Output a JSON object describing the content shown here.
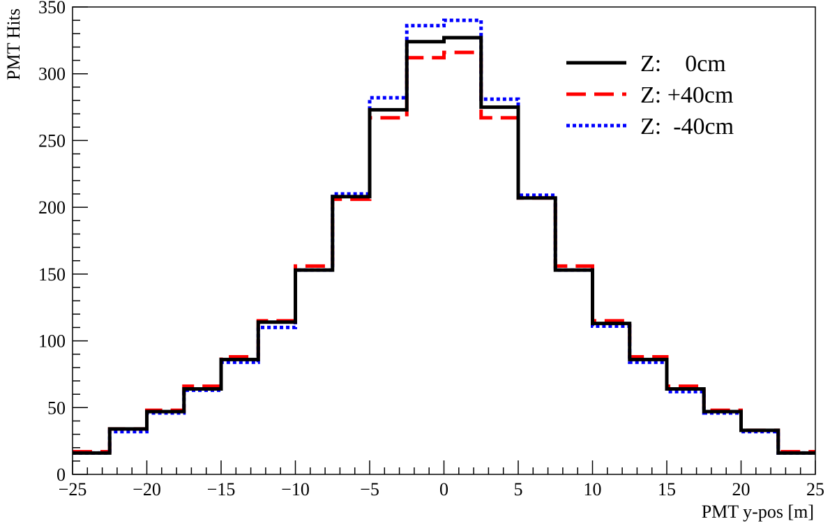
{
  "chart_data": {
    "type": "line",
    "step": "histogram",
    "title": "",
    "xlabel": "PMT y-pos [m]",
    "ylabel": "PMT Hits",
    "xlim": [
      -25,
      25
    ],
    "ylim": [
      0,
      350
    ],
    "xticks": [
      -25,
      -20,
      -15,
      -10,
      -5,
      0,
      5,
      10,
      15,
      20,
      25
    ],
    "xtick_labels": [
      "−25",
      "−20",
      "−15",
      "−10",
      "−5",
      "0",
      "5",
      "10",
      "15",
      "20",
      "25"
    ],
    "yticks": [
      0,
      50,
      100,
      150,
      200,
      250,
      300,
      350
    ],
    "ytick_labels": [
      "0",
      "50",
      "100",
      "150",
      "200",
      "250",
      "300",
      "350"
    ],
    "bin_edges": [
      -25,
      -22.5,
      -20,
      -17.5,
      -15,
      -12.5,
      -10,
      -7.5,
      -5,
      -2.5,
      0,
      2.5,
      5,
      7.5,
      10,
      12.5,
      15,
      17.5,
      20,
      22.5,
      25
    ],
    "legend_position": "top-right",
    "grid": false,
    "series": [
      {
        "name": "Z:    0cm",
        "color": "#000000",
        "style": "solid",
        "values": [
          16,
          34,
          47,
          64,
          86,
          114,
          153,
          208,
          273,
          324,
          327,
          275,
          207,
          153,
          113,
          86,
          64,
          47,
          33,
          16
        ]
      },
      {
        "name": "Z: +40cm",
        "color": "#ff0000",
        "style": "dashed",
        "values": [
          17,
          34,
          48,
          66,
          88,
          115,
          156,
          206,
          267,
          312,
          316,
          267,
          207,
          156,
          115,
          88,
          66,
          48,
          33,
          17
        ]
      },
      {
        "name": "Z:  -40cm",
        "color": "#0000ff",
        "style": "dotted",
        "values": [
          16,
          32,
          46,
          63,
          84,
          110,
          153,
          210,
          282,
          336,
          340,
          281,
          209,
          153,
          111,
          84,
          62,
          46,
          32,
          16
        ]
      }
    ]
  }
}
